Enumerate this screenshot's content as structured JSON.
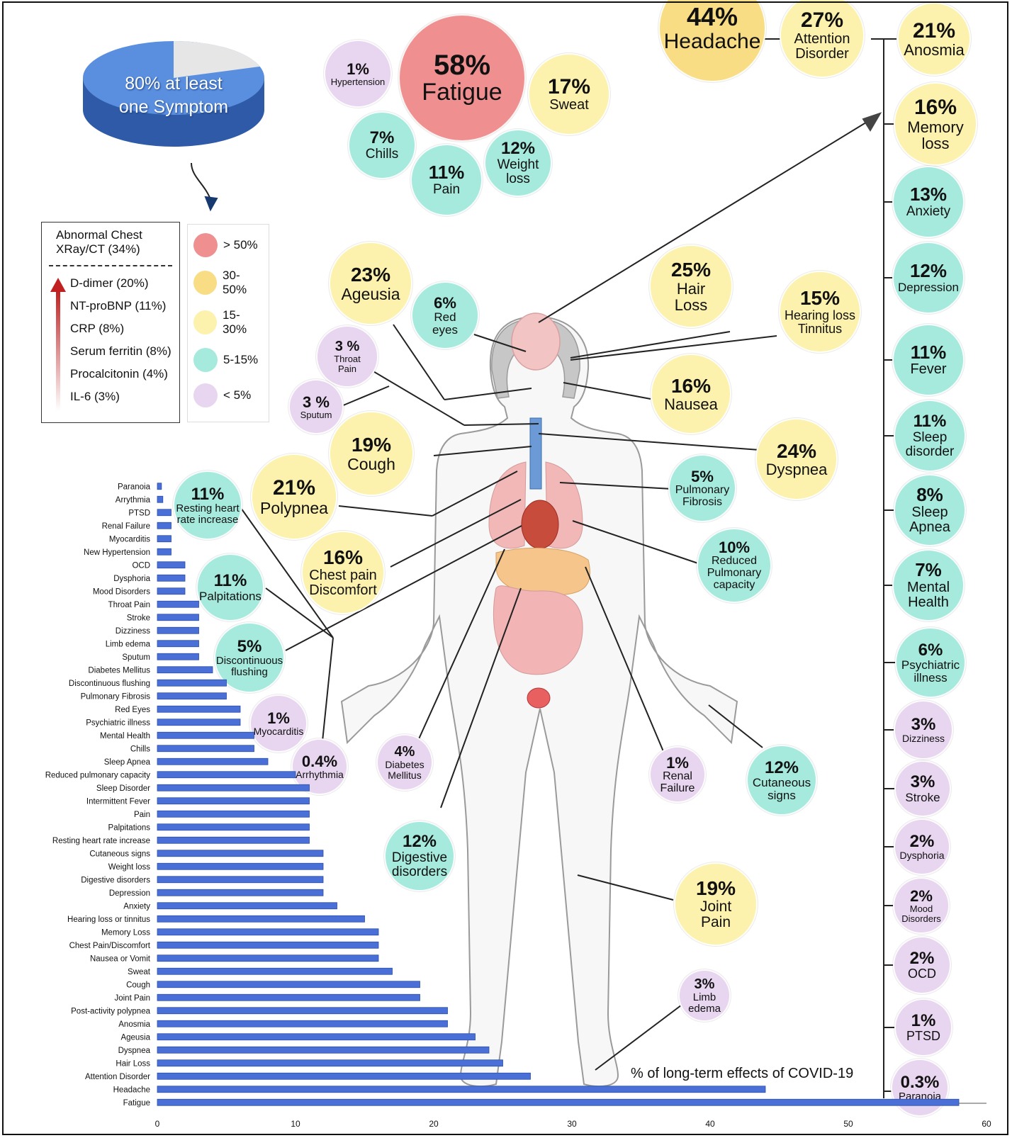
{
  "colors": {
    "gt50": "#ef8f8f",
    "c30_50": "#f8dd85",
    "c15_30": "#fcf1ad",
    "c5_15": "#a5eadd",
    "lt5": "#e8d5ef",
    "bar": "#4a6fd6",
    "pie_main": "#5a8fe0",
    "pie_rest": "#e6e6e6"
  },
  "pie": {
    "text": "80% at least one Symptom",
    "line1": "80% at least",
    "line2": "one Symptom",
    "share": 0.8
  },
  "chest": {
    "label_line1": "Abnormal Chest",
    "label_line2": "XRay/CT (34%)"
  },
  "markers": [
    "D-dimer (20%)",
    "NT-proBNP (11%)",
    "CRP (8%)",
    "Serum ferritin (8%)",
    "Procalcitonin (4%)",
    "IL-6 (3%)"
  ],
  "legend": [
    {
      "color": "#ef8f8f",
      "label": "> 50%"
    },
    {
      "color": "#f8dd85",
      "label": "30-50%"
    },
    {
      "color": "#fcf1ad",
      "label": "15-30%"
    },
    {
      "color": "#a5eadd",
      "label": "5-15%"
    },
    {
      "color": "#e8d5ef",
      "label": "< 5%"
    }
  ],
  "bubbles": {
    "headache": {
      "pct": "44%",
      "lines": [
        "Headache"
      ]
    },
    "attention": {
      "pct": "27%",
      "lines": [
        "Attention",
        "Disorder"
      ]
    },
    "anosmia": {
      "pct": "21%",
      "lines": [
        "Anosmia"
      ]
    },
    "memory": {
      "pct": "16%",
      "lines": [
        "Memory",
        "loss"
      ]
    },
    "anxiety": {
      "pct": "13%",
      "lines": [
        "Anxiety"
      ]
    },
    "depression": {
      "pct": "12%",
      "lines": [
        "Depression"
      ]
    },
    "fever": {
      "pct": "11%",
      "lines": [
        "Fever"
      ]
    },
    "sleep_disorder": {
      "pct": "11%",
      "lines": [
        "Sleep",
        "disorder"
      ]
    },
    "sleep_apnea": {
      "pct": "8%",
      "lines": [
        "Sleep",
        "Apnea"
      ]
    },
    "mental": {
      "pct": "7%",
      "lines": [
        "Mental",
        "Health"
      ]
    },
    "psychiatric": {
      "pct": "6%",
      "lines": [
        "Psychiatric",
        "illness"
      ]
    },
    "dizziness": {
      "pct": "3%",
      "lines": [
        "Dizziness"
      ]
    },
    "stroke": {
      "pct": "3%",
      "lines": [
        "Stroke"
      ]
    },
    "dysphoria": {
      "pct": "2%",
      "lines": [
        "Dysphoria"
      ]
    },
    "mood": {
      "pct": "2%",
      "lines": [
        "Mood",
        "Disorders"
      ]
    },
    "ocd": {
      "pct": "2%",
      "lines": [
        "OCD"
      ]
    },
    "ptsd": {
      "pct": "1%",
      "lines": [
        "PTSD"
      ]
    },
    "paranoia": {
      "pct": "0.3%",
      "lines": [
        "Paranoia"
      ]
    },
    "hypertension": {
      "pct": "1%",
      "lines": [
        "Hypertension"
      ]
    },
    "fatigue": {
      "pct": "58%",
      "lines": [
        "Fatigue"
      ]
    },
    "sweat": {
      "pct": "17%",
      "lines": [
        "Sweat"
      ]
    },
    "chills": {
      "pct": "7%",
      "lines": [
        "Chills"
      ]
    },
    "pain": {
      "pct": "11%",
      "lines": [
        "Pain"
      ]
    },
    "weight": {
      "pct": "12%",
      "lines": [
        "Weight",
        "loss"
      ]
    },
    "ageusia": {
      "pct": "23%",
      "lines": [
        "Ageusia"
      ]
    },
    "red_eyes": {
      "pct": "6%",
      "lines": [
        "Red",
        "eyes"
      ]
    },
    "hair_loss": {
      "pct": "25%",
      "lines": [
        "Hair",
        "Loss"
      ]
    },
    "hearing": {
      "pct": "15%",
      "lines": [
        "Hearing loss",
        "Tinnitus"
      ]
    },
    "throat": {
      "pct": "3 %",
      "lines": [
        "Throat",
        "Pain"
      ]
    },
    "sputum": {
      "pct": "3 %",
      "lines": [
        "Sputum"
      ]
    },
    "nausea": {
      "pct": "16%",
      "lines": [
        "Nausea"
      ]
    },
    "cough": {
      "pct": "19%",
      "lines": [
        "Cough"
      ]
    },
    "dyspnea": {
      "pct": "24%",
      "lines": [
        "Dyspnea"
      ]
    },
    "polypnea": {
      "pct": "21%",
      "lines": [
        "Polypnea"
      ]
    },
    "pulm_fibrosis": {
      "pct": "5%",
      "lines": [
        "Pulmonary",
        "Fibrosis"
      ]
    },
    "resting_hr": {
      "pct": "11%",
      "lines": [
        "Resting heart",
        "rate increase"
      ]
    },
    "chest_pain": {
      "pct": "16%",
      "lines": [
        "Chest pain",
        "Discomfort"
      ]
    },
    "reduced_pulm": {
      "pct": "10%",
      "lines": [
        "Reduced",
        "Pulmonary",
        "capacity"
      ]
    },
    "palpitations": {
      "pct": "11%",
      "lines": [
        "Palpitations"
      ]
    },
    "disc_flushing": {
      "pct": "5%",
      "lines": [
        "Discontinuous",
        "flushing"
      ]
    },
    "myocarditis": {
      "pct": "1%",
      "lines": [
        "Myocarditis"
      ]
    },
    "arrhythmia": {
      "pct": "0.4%",
      "lines": [
        "Arrhythmia"
      ]
    },
    "diabetes": {
      "pct": "4%",
      "lines": [
        "Diabetes",
        "Mellitus"
      ]
    },
    "renal": {
      "pct": "1%",
      "lines": [
        "Renal",
        "Failure"
      ]
    },
    "cutaneous": {
      "pct": "12%",
      "lines": [
        "Cutaneous",
        "signs"
      ]
    },
    "digestive": {
      "pct": "12%",
      "lines": [
        "Digestive",
        "disorders"
      ]
    },
    "joint": {
      "pct": "19%",
      "lines": [
        "Joint",
        "Pain"
      ]
    },
    "limb": {
      "pct": "3%",
      "lines": [
        "Limb",
        "edema"
      ]
    }
  },
  "chart_data": {
    "type": "bar",
    "orientation": "horizontal",
    "xlabel": "% of long-term effects of COVID-19",
    "xlim": [
      0,
      60
    ],
    "xticks": [
      0,
      10,
      20,
      30,
      40,
      50,
      60
    ],
    "categories": [
      "Paranoia",
      "Arrythmia",
      "PTSD",
      "Renal Failure",
      "Myocarditis",
      "New Hypertension",
      "OCD",
      "Dysphoria",
      "Mood Disorders",
      "Throat Pain",
      "Stroke",
      "Dizziness",
      "Limb edema",
      "Sputum",
      "Diabetes Mellitus",
      "Discontinuous flushing",
      "Pulmonary Fibrosis",
      "Red Eyes",
      "Psychiatric illness",
      "Mental Health",
      "Chills",
      "Sleep Apnea",
      "Reduced pulmonary capacity",
      "Sleep Disorder",
      "Intermittent Fever",
      "Pain",
      "Palpitations",
      "Resting heart rate increase",
      "Cutaneous signs",
      "Weight loss",
      "Digestive disorders",
      "Depression",
      "Anxiety",
      "Hearing loss or tinnitus",
      "Memory Loss",
      "Chest Pain/Discomfort",
      "Nausea or Vomit",
      "Sweat",
      "Cough",
      "Joint Pain",
      "Post-activity polypnea",
      "Anosmia",
      "Ageusia",
      "Dyspnea",
      "Hair Loss",
      "Attention Disorder",
      "Headache",
      "Fatigue"
    ],
    "values": [
      0.3,
      0.4,
      1,
      1,
      1,
      1,
      2,
      2,
      2,
      3,
      3,
      3,
      3,
      3,
      4,
      5,
      5,
      6,
      6,
      7,
      7,
      8,
      10,
      11,
      11,
      11,
      11,
      11,
      12,
      12,
      12,
      12,
      13,
      15,
      16,
      16,
      16,
      17,
      19,
      19,
      21,
      21,
      23,
      24,
      25,
      27,
      44,
      58
    ]
  }
}
